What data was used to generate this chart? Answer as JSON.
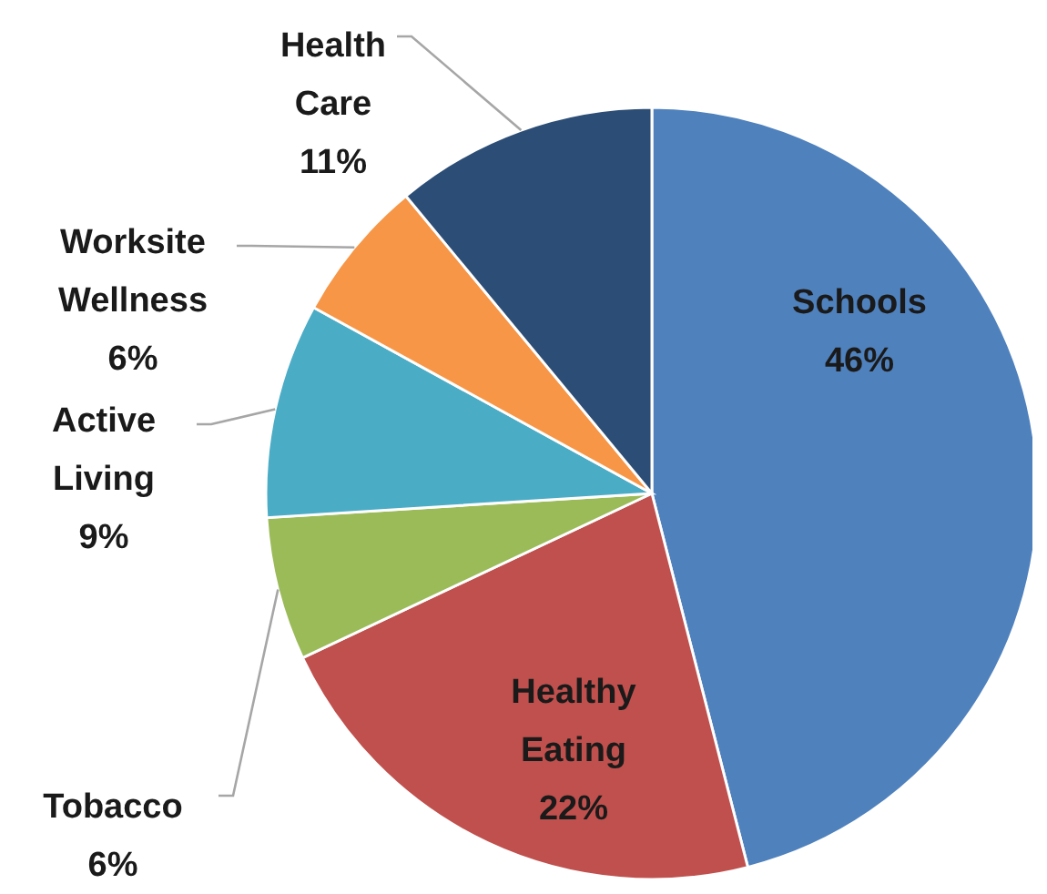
{
  "chart_data": {
    "type": "pie",
    "categories": [
      "Schools",
      "Healthy Eating",
      "Tobacco",
      "Active Living",
      "Worksite Wellness",
      "Health Care"
    ],
    "values": [
      46,
      22,
      6,
      9,
      6,
      11
    ],
    "value_labels": [
      "46%",
      "22%",
      "6%",
      "9%",
      "6%",
      "11%"
    ],
    "colors": [
      "#4f81bd",
      "#c0504d",
      "#9bbb59",
      "#4bacc6",
      "#f79646",
      "#2c4d75"
    ],
    "legend": false
  }
}
